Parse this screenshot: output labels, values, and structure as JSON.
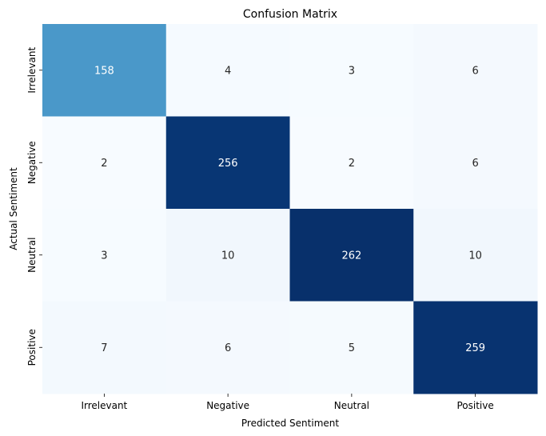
{
  "chart_data": {
    "type": "heatmap",
    "title": "Confusion Matrix",
    "xlabel": "Predicted Sentiment",
    "ylabel": "Actual Sentiment",
    "x_categories": [
      "Irrelevant",
      "Negative",
      "Neutral",
      "Positive"
    ],
    "y_categories": [
      "Irrelevant",
      "Negative",
      "Neutral",
      "Positive"
    ],
    "values": [
      [
        158,
        4,
        3,
        6
      ],
      [
        2,
        256,
        2,
        6
      ],
      [
        3,
        10,
        262,
        10
      ],
      [
        7,
        6,
        5,
        259
      ]
    ],
    "colormap": "Blues",
    "colorbar": false,
    "annotated": true
  }
}
